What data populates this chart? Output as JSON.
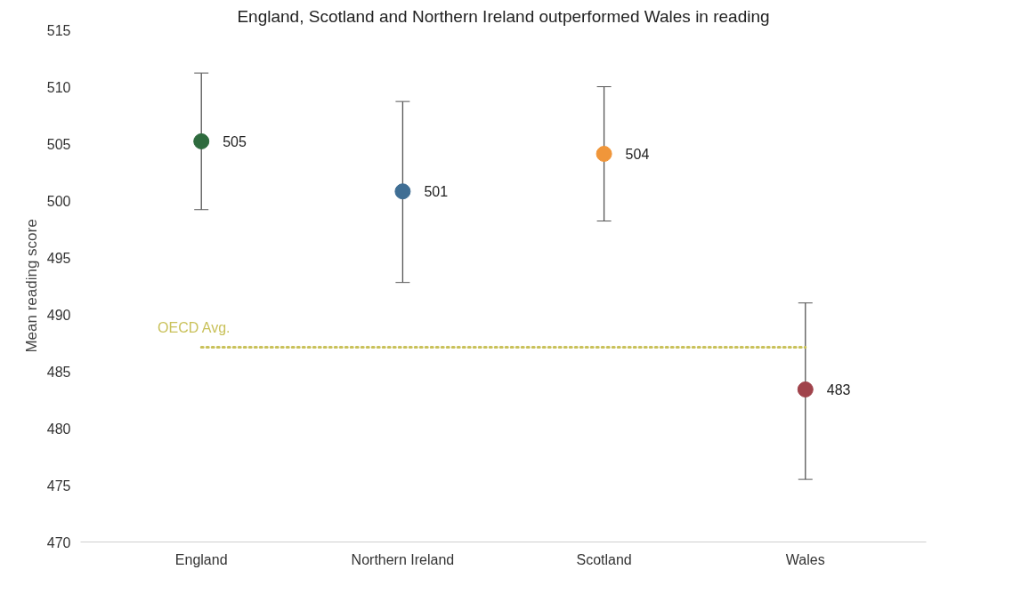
{
  "chart_data": {
    "type": "scatter",
    "title": "England, Scotland and Northern Ireland outperformed Wales in reading",
    "ylabel": "Mean reading score",
    "categories": [
      "England",
      "Northern Ireland",
      "Scotland",
      "Wales"
    ],
    "values": [
      505.2,
      500.8,
      504.1,
      483.4
    ],
    "colors": [
      "#2e6b3e",
      "#3f6e94",
      "#f0963a",
      "#a0434b"
    ],
    "errors": [
      [
        499.2,
        511.2
      ],
      [
        492.8,
        508.7
      ],
      [
        498.2,
        510.0
      ],
      [
        475.5,
        491.0
      ]
    ],
    "value_labels": [
      "505",
      "501",
      "504",
      "483"
    ],
    "ylim": [
      470,
      515
    ],
    "yticks": [
      470,
      475,
      480,
      485,
      490,
      495,
      500,
      505,
      510,
      515
    ],
    "ref_lines": [
      {
        "axis": "y",
        "value": 487.1,
        "label": "OECD Avg.",
        "color": "#c9c15a",
        "line_style": "dotted"
      }
    ],
    "marker": "circle",
    "grid": false
  }
}
